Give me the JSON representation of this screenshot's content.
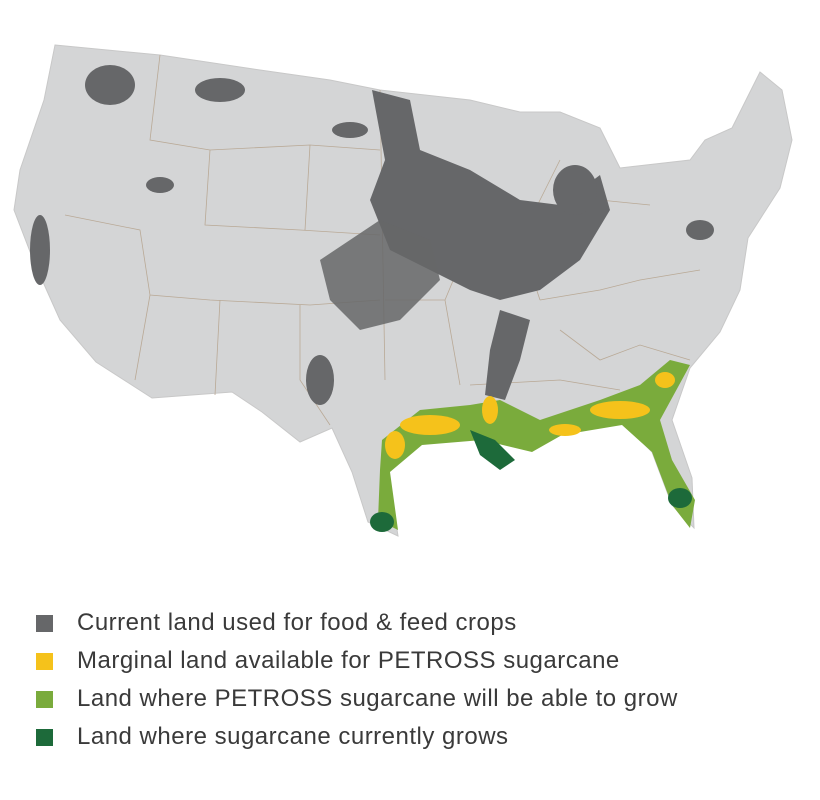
{
  "legend": [
    {
      "label": "Current land used for food & feed crops",
      "color": "#666769"
    },
    {
      "label": "Marginal land available for PETROSS sugarcane",
      "color": "#f5c21b"
    },
    {
      "label": "Land where PETROSS sugarcane will be able to grow",
      "color": "#7aab3c"
    },
    {
      "label": "Land where sugarcane currently grows",
      "color": "#1d6a3a"
    }
  ]
}
